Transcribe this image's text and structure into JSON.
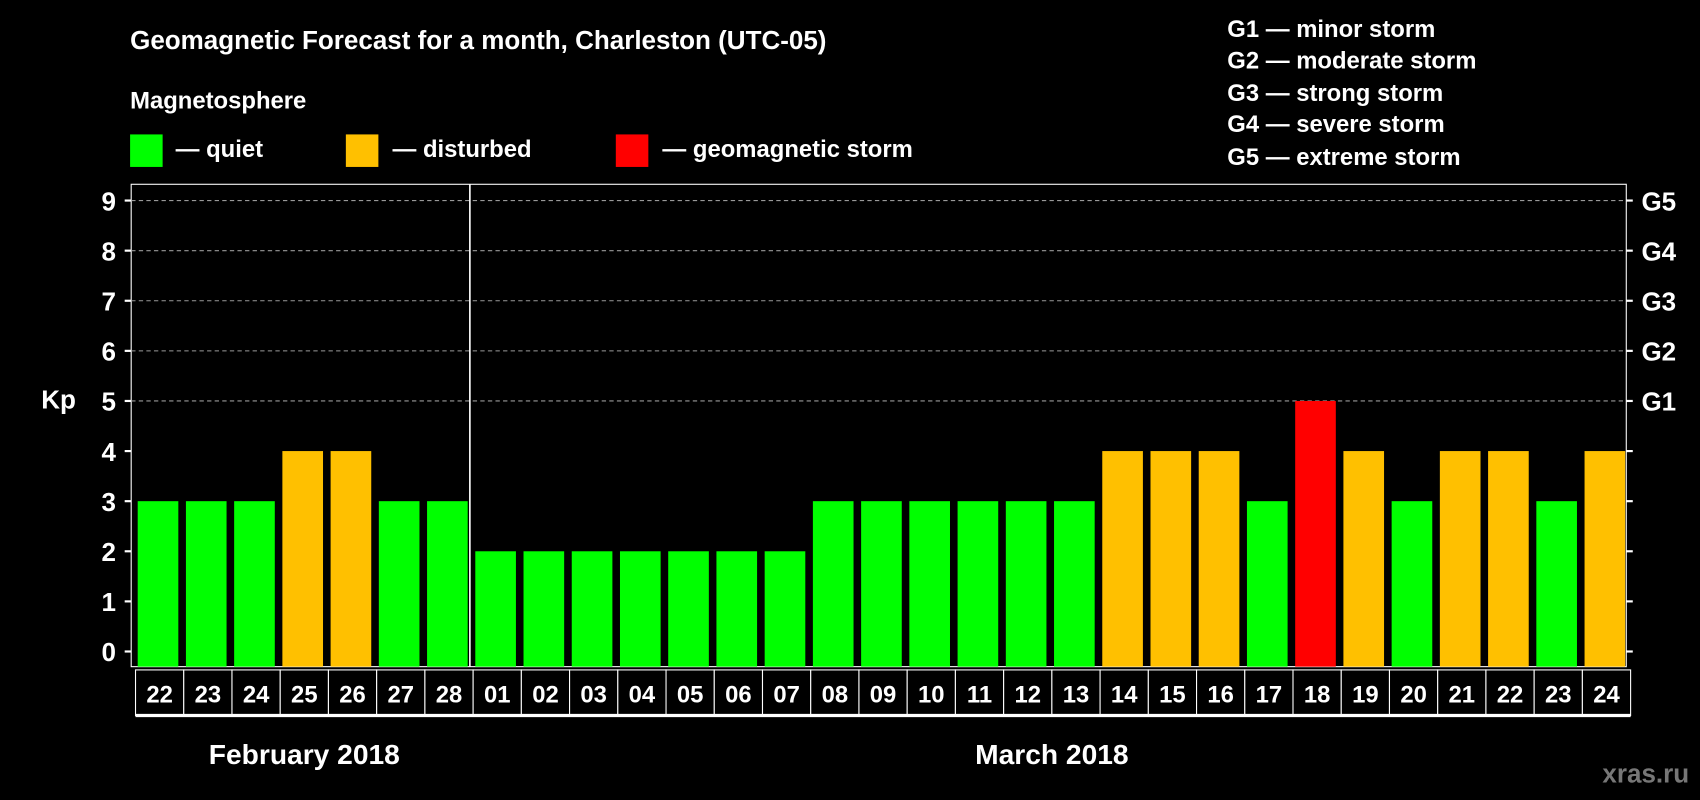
{
  "chart_data": {
    "type": "bar",
    "title": "Geomagnetic Forecast for a month, Charleston (UTC-05)",
    "ylabel": "Kp",
    "ylim": [
      0,
      9
    ],
    "yticks": [
      "0",
      "1",
      "2",
      "3",
      "4",
      "5",
      "6",
      "7",
      "8",
      "9"
    ],
    "right_ticks": [
      {
        "kp": 5,
        "label": "G1"
      },
      {
        "kp": 6,
        "label": "G2"
      },
      {
        "kp": 7,
        "label": "G3"
      },
      {
        "kp": 8,
        "label": "G4"
      },
      {
        "kp": 9,
        "label": "G5"
      }
    ],
    "categories": [
      "22",
      "23",
      "24",
      "25",
      "26",
      "27",
      "28",
      "01",
      "02",
      "03",
      "04",
      "05",
      "06",
      "07",
      "08",
      "09",
      "10",
      "11",
      "12",
      "13",
      "14",
      "15",
      "16",
      "17",
      "18",
      "19",
      "20",
      "21",
      "22",
      "23",
      "24"
    ],
    "values": [
      3,
      3,
      3,
      4,
      4,
      3,
      3,
      2,
      2,
      2,
      2,
      2,
      2,
      2,
      3,
      3,
      3,
      3,
      3,
      3,
      4,
      4,
      4,
      3,
      5,
      4,
      3,
      4,
      4,
      3,
      4
    ],
    "months": [
      {
        "label": "February 2018",
        "start": 0,
        "end": 7
      },
      {
        "label": "March 2018",
        "start": 7,
        "end": 31
      }
    ],
    "grid": true
  },
  "legend": {
    "title": "Magnetosphere",
    "items": [
      {
        "label": "— quiet",
        "color": "#00ff00"
      },
      {
        "label": "— disturbed",
        "color": "#ffc000"
      },
      {
        "label": "— geomagnetic storm",
        "color": "#ff0000"
      }
    ],
    "scale": [
      "G1 — minor storm",
      "G2 — moderate storm",
      "G3 — strong storm",
      "G4 — severe storm",
      "G5 — extreme storm"
    ]
  },
  "watermark": "xras.ru"
}
